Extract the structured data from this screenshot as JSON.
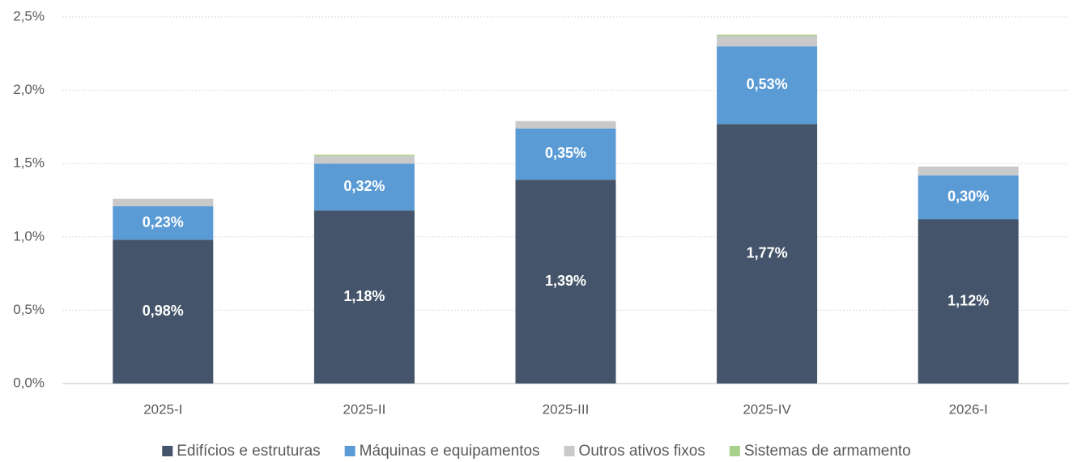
{
  "chart_data": {
    "type": "stacked_bar",
    "categories": [
      "2025-I",
      "2025-II",
      "2025-III",
      "2025-IV",
      "2026-I"
    ],
    "series": [
      {
        "name": "Edifícios e estruturas",
        "color": "#44546a",
        "values": [
          0.98,
          1.18,
          1.39,
          1.77,
          1.12
        ],
        "value_labels": [
          "0,98%",
          "1,18%",
          "1,39%",
          "1,77%",
          "1,12%"
        ]
      },
      {
        "name": "Máquinas e equipamentos",
        "color": "#5b9bd5",
        "values": [
          0.23,
          0.32,
          0.35,
          0.53,
          0.3
        ],
        "value_labels": [
          "0,23%",
          "0,32%",
          "0,35%",
          "0,53%",
          "0,30%"
        ]
      },
      {
        "name": "Outros ativos fixos",
        "color": "#c9c9c9",
        "values": [
          0.05,
          0.05,
          0.05,
          0.07,
          0.06
        ]
      },
      {
        "name": "Sistemas de armamento",
        "color": "#a9d18e",
        "values": [
          0.0,
          0.01,
          0.0,
          0.01,
          0.0
        ]
      }
    ],
    "ylim": [
      0,
      2.5
    ],
    "yticks": [
      {
        "value": 0,
        "label": "0,0%"
      },
      {
        "value": 0.5,
        "label": "0,5%"
      },
      {
        "value": 1,
        "label": "1,0%"
      },
      {
        "value": 1.5,
        "label": "1,5%"
      },
      {
        "value": 2,
        "label": "2,0%"
      },
      {
        "value": 2.5,
        "label": "2,5%"
      }
    ],
    "grid": true,
    "legend": "bottom"
  }
}
